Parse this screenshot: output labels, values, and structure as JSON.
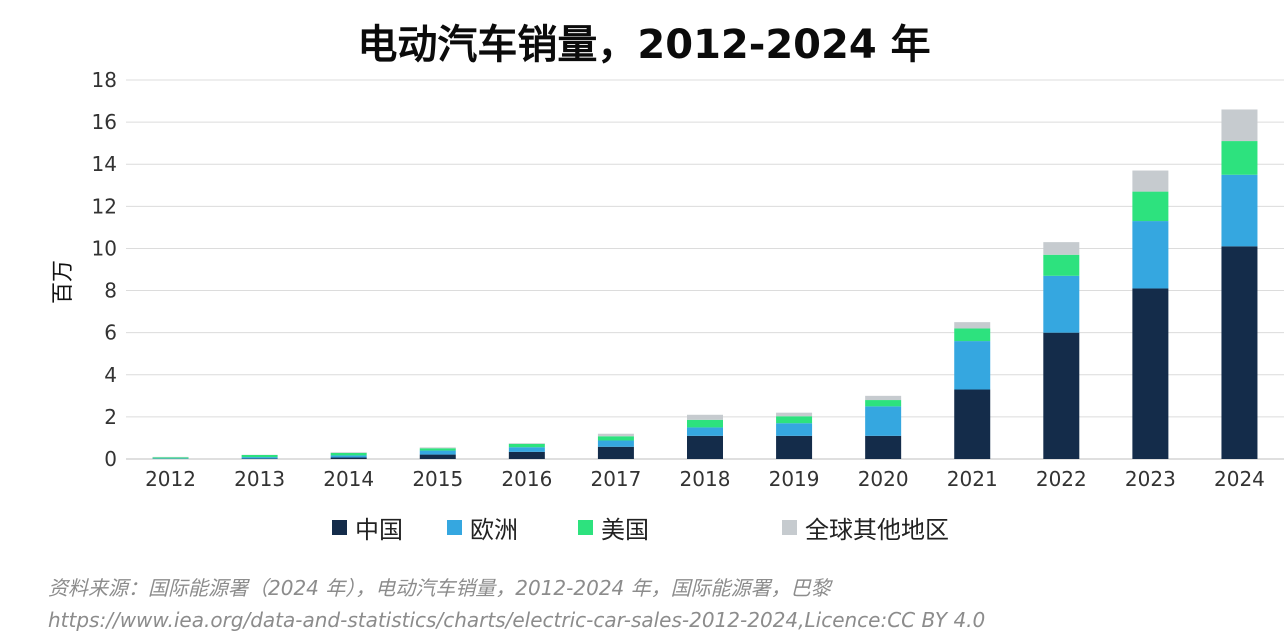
{
  "chart_data": {
    "type": "bar",
    "stacked": true,
    "title": "电动汽车销量，2012-2024 年",
    "ylabel": "百万",
    "xlabel": "",
    "ylim": [
      0,
      18
    ],
    "yticks": [
      0,
      2,
      4,
      6,
      8,
      10,
      12,
      14,
      16,
      18
    ],
    "grid": true,
    "legend_position": "bottom",
    "categories": [
      "2012",
      "2013",
      "2014",
      "2015",
      "2016",
      "2017",
      "2018",
      "2019",
      "2020",
      "2021",
      "2022",
      "2023",
      "2024"
    ],
    "series": [
      {
        "name": "中国",
        "color": "#142c4a",
        "values": [
          0.01,
          0.02,
          0.07,
          0.21,
          0.34,
          0.58,
          1.1,
          1.1,
          1.1,
          3.3,
          6.0,
          8.1,
          10.1
        ]
      },
      {
        "name": "欧洲",
        "color": "#35a7e0",
        "values": [
          0.02,
          0.07,
          0.1,
          0.19,
          0.22,
          0.3,
          0.4,
          0.6,
          1.4,
          2.3,
          2.7,
          3.2,
          3.4
        ]
      },
      {
        "name": "美国",
        "color": "#2de27e",
        "values": [
          0.05,
          0.1,
          0.12,
          0.11,
          0.16,
          0.2,
          0.36,
          0.33,
          0.3,
          0.6,
          1.0,
          1.4,
          1.6
        ]
      },
      {
        "name": "全球其他地区",
        "color": "#c6cbcf",
        "values": [
          0.02,
          0.01,
          0.03,
          0.04,
          0.03,
          0.12,
          0.24,
          0.17,
          0.2,
          0.3,
          0.6,
          1.0,
          1.5
        ]
      }
    ]
  },
  "source_note": {
    "line1": "资料来源：国际能源署（2024 年），电动汽车销量，2012-2024 年，国际能源署，巴黎",
    "line2": "https://www.iea.org/data-and-statistics/charts/electric-car-sales-2012-2024,Licence:CC BY 4.0"
  }
}
